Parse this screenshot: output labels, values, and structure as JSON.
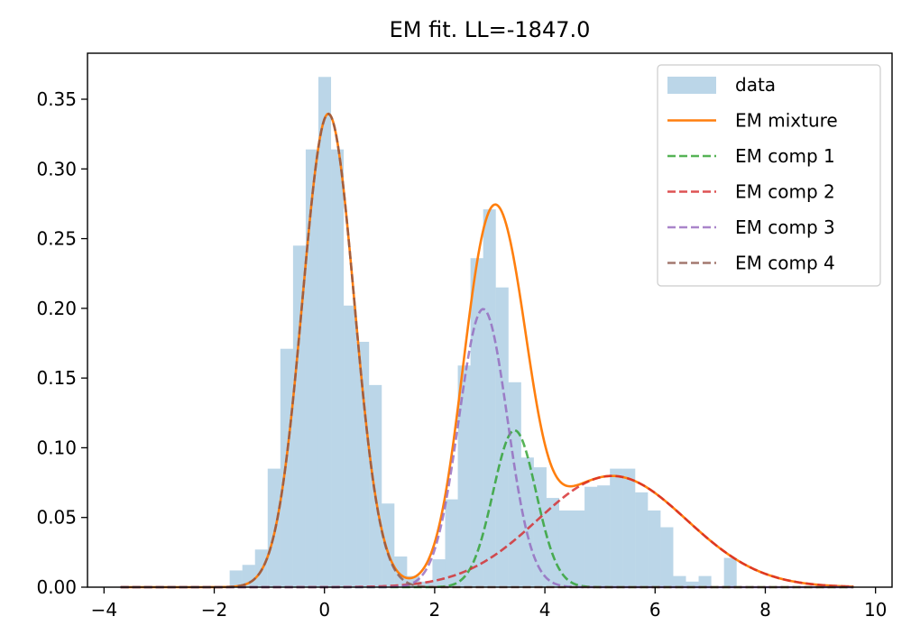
{
  "chart_data": {
    "type": "histogram-with-lines",
    "title": "EM fit. LL=-1847.0",
    "xlabel": "",
    "ylabel": "",
    "xlim": [
      -4.3,
      10.3
    ],
    "ylim": [
      0,
      0.383
    ],
    "x_ticks": [
      -4,
      -2,
      0,
      2,
      4,
      6,
      8,
      10
    ],
    "x_tick_labels": [
      "−4",
      "−2",
      "0",
      "2",
      "4",
      "6",
      "8",
      "10"
    ],
    "y_ticks": [
      0.0,
      0.05,
      0.1,
      0.15,
      0.2,
      0.25,
      0.3,
      0.35
    ],
    "y_tick_labels": [
      "0.00",
      "0.05",
      "0.10",
      "0.15",
      "0.20",
      "0.25",
      "0.30",
      "0.35"
    ],
    "grid": false,
    "legend_position": "top-right",
    "histogram": {
      "name": "data",
      "color": "#1f77b4",
      "opacity": 0.3,
      "bin_edges": [
        -1.72,
        -1.49,
        -1.26,
        -1.03,
        -0.8,
        -0.57,
        -0.34,
        -0.11,
        0.12,
        0.35,
        0.58,
        0.81,
        1.04,
        1.27,
        1.5,
        1.73,
        1.96,
        2.19,
        2.42,
        2.65,
        2.88,
        3.11,
        3.34,
        3.57,
        3.8,
        4.03,
        4.26,
        4.49,
        4.72,
        4.95,
        5.18,
        5.41,
        5.64,
        5.87,
        6.1,
        6.33,
        6.56,
        6.79,
        7.02,
        7.25,
        7.48,
        7.71
      ],
      "values": [
        0.012,
        0.016,
        0.027,
        0.085,
        0.171,
        0.245,
        0.314,
        0.366,
        0.314,
        0.202,
        0.176,
        0.145,
        0.06,
        0.022,
        0.008,
        0.004,
        0.02,
        0.063,
        0.159,
        0.236,
        0.271,
        0.215,
        0.147,
        0.093,
        0.086,
        0.064,
        0.055,
        0.055,
        0.072,
        0.073,
        0.085,
        0.085,
        0.068,
        0.055,
        0.043,
        0.008,
        0.004,
        0.008,
        0.0,
        0.021,
        0.0
      ]
    },
    "series": [
      {
        "name": "EM mixture",
        "color": "#ff7f0e",
        "style": "solid"
      },
      {
        "name": "EM comp 1",
        "color": "#2ca02c",
        "style": "dashed"
      },
      {
        "name": "EM comp 2",
        "color": "#d62728",
        "style": "dashed"
      },
      {
        "name": "EM comp 3",
        "color": "#9467bd",
        "style": "dashed"
      },
      {
        "name": "EM comp 4",
        "color": "#8c564b",
        "style": "dashed"
      }
    ],
    "components": [
      {
        "series": "EM comp 1",
        "weight": 0.11,
        "mean": 3.45,
        "sd": 0.39
      },
      {
        "series": "EM comp 2",
        "weight": 0.27,
        "mean": 5.22,
        "sd": 1.35
      },
      {
        "series": "EM comp 3",
        "weight": 0.22,
        "mean": 2.88,
        "sd": 0.44
      },
      {
        "series": "EM comp 4",
        "weight": 0.4,
        "mean": 0.07,
        "sd": 0.47
      }
    ],
    "x_range": [
      -3.7,
      9.6
    ]
  }
}
